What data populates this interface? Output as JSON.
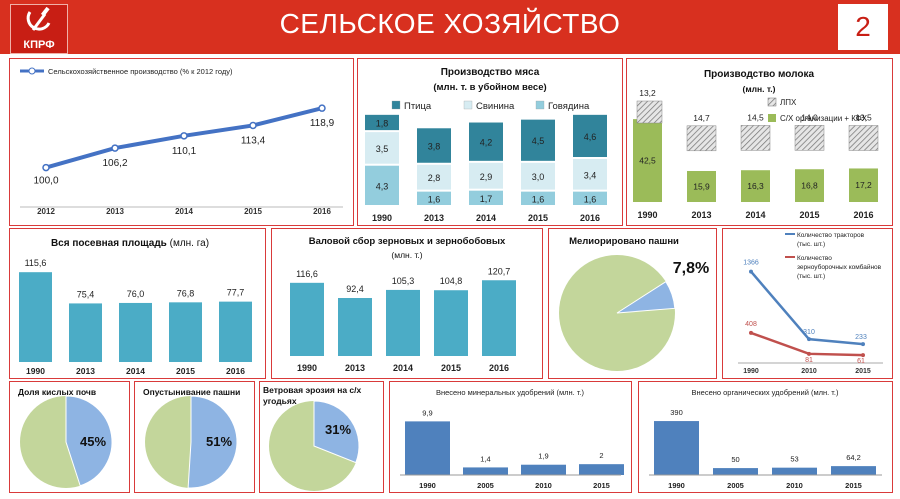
{
  "header": {
    "logo_text": "КПРФ",
    "title": "СЕЛЬСКОЕ ХОЗЯЙСТВО",
    "page_number": "2"
  },
  "colors": {
    "header_red": "#d8301f",
    "line_blue": "#4472c4",
    "bar_teal": "#4bacc6",
    "pie_green": "#c3d69b",
    "pie_blue": "#8eb4e3",
    "milk_green": "#9bbb59",
    "fert_blue": "#4f81bd",
    "tractor_blue": "#4f81bd",
    "combine_red": "#c0504d"
  },
  "chart_data": [
    {
      "id": "agri",
      "type": "line",
      "series_name": "Сельскохозяйственное производство (% к 2012 году)",
      "categories": [
        "2012",
        "2013",
        "2014",
        "2015",
        "2016"
      ],
      "values": [
        100.0,
        106.2,
        110.1,
        113.4,
        118.9
      ],
      "labels": [
        "100,0",
        "106,2",
        "110,1",
        "113,4",
        "118,9"
      ],
      "ylim": [
        90,
        125
      ]
    },
    {
      "id": "meat",
      "type": "bar",
      "stacked": true,
      "title": "Производство мяса",
      "subtitle": "(млн. т. в убойном весе)",
      "categories": [
        "1990",
        "2013",
        "2014",
        "2015",
        "2016"
      ],
      "series": [
        {
          "name": "Говядина",
          "values": [
            4.3,
            1.6,
            1.7,
            1.6,
            1.6
          ],
          "labels": [
            "4,3",
            "1,6",
            "1,7",
            "1,6",
            "1,6"
          ],
          "color": "#93cddd"
        },
        {
          "name": "Свинина",
          "values": [
            3.5,
            2.8,
            2.9,
            3.0,
            3.4
          ],
          "labels": [
            "3,5",
            "2,8",
            "2,9",
            "3,0",
            "3,4"
          ],
          "color": "#d7ecf2"
        },
        {
          "name": "Птица",
          "values": [
            1.8,
            3.8,
            4.2,
            4.5,
            4.6
          ],
          "labels": [
            "1,8",
            "3,8",
            "4,2",
            "4,5",
            "4,6"
          ],
          "color": "#31849b"
        }
      ],
      "legend_order": [
        "Птица",
        "Свинина",
        "Говядина"
      ]
    },
    {
      "id": "milk",
      "type": "bar",
      "stacked": true,
      "title": "Производство молока",
      "subtitle": "(млн. т.)",
      "categories": [
        "1990",
        "2013",
        "2014",
        "2015",
        "2016"
      ],
      "series": [
        {
          "name": "С/Х организации + КФХ",
          "values": [
            42.5,
            15.9,
            16.3,
            16.8,
            17.2
          ],
          "labels": [
            "42,5",
            "15,9",
            "16,3",
            "16,8",
            "17,2"
          ],
          "color": "#9bbb59"
        },
        {
          "name": "ЛПХ",
          "values": [
            13.2,
            14.7,
            14.5,
            14.0,
            13.5
          ],
          "labels": [
            "13,2",
            "14,7",
            "14,5",
            "14,0",
            "13,5"
          ],
          "color": "#d9d9d9"
        }
      ]
    },
    {
      "id": "sown",
      "type": "bar",
      "title": "Вся посевная площадь",
      "title_unit": "(млн. га)",
      "categories": [
        "1990",
        "2013",
        "2014",
        "2015",
        "2016"
      ],
      "values": [
        115.6,
        75.4,
        76.0,
        76.8,
        77.7
      ],
      "labels": [
        "115,6",
        "75,4",
        "76,0",
        "76,8",
        "77,7"
      ],
      "ylim": [
        0,
        130
      ]
    },
    {
      "id": "grain",
      "type": "bar",
      "title": "Валовой сбор зерновых и зернобобовых",
      "subtitle": "(млн. т.)",
      "categories": [
        "1990",
        "2013",
        "2014",
        "2015",
        "2016"
      ],
      "values": [
        116.6,
        92.4,
        105.3,
        104.8,
        120.7
      ],
      "labels": [
        "116,6",
        "92,4",
        "105,3",
        "104,8",
        "120,7"
      ],
      "ylim": [
        0,
        145
      ]
    },
    {
      "id": "melior",
      "type": "pie",
      "title": "Мелиорировано пашни",
      "value": 7.8,
      "label": "7,8%"
    },
    {
      "id": "machines",
      "type": "line",
      "categories": [
        "1990",
        "2010",
        "2015"
      ],
      "ylim": [
        0,
        1500
      ],
      "series": [
        {
          "name": "Количество тракторов (тыс. шт.)",
          "values": [
            1366,
            310,
            233
          ],
          "labels": [
            "1366",
            "310",
            "233"
          ],
          "color": "#4f81bd"
        },
        {
          "name": "Количество зерноуборочных комбайнов (тыс. шт.)",
          "values": [
            408,
            81,
            61
          ],
          "labels": [
            "408",
            "81",
            "61"
          ],
          "color": "#c0504d"
        }
      ]
    },
    {
      "id": "acid",
      "type": "pie",
      "title": "Доля кислых почв",
      "value": 45,
      "label": "45%"
    },
    {
      "id": "desert",
      "type": "pie",
      "title": "Опустынивание пашни",
      "value": 51,
      "label": "51%"
    },
    {
      "id": "wind",
      "type": "pie",
      "title": "Ветровая эрозия на с/х угодьях",
      "value": 31,
      "label": "31%"
    },
    {
      "id": "mineral",
      "type": "bar",
      "title": "Внесено минеральных удобрений (млн. т.)",
      "categories": [
        "1990",
        "2005",
        "2010",
        "2015"
      ],
      "values": [
        9.9,
        1.4,
        1.9,
        2.0
      ],
      "labels": [
        "9,9",
        "1,4",
        "1,9",
        "2"
      ],
      "ylim": [
        0,
        12
      ]
    },
    {
      "id": "organic",
      "type": "bar",
      "title": "Внесено органических удобрений (млн. т.)",
      "categories": [
        "1990",
        "2005",
        "2010",
        "2015"
      ],
      "values": [
        390,
        50,
        53,
        64.2
      ],
      "labels": [
        "390",
        "50",
        "53",
        "64,2"
      ],
      "ylim": [
        0,
        470
      ]
    }
  ]
}
